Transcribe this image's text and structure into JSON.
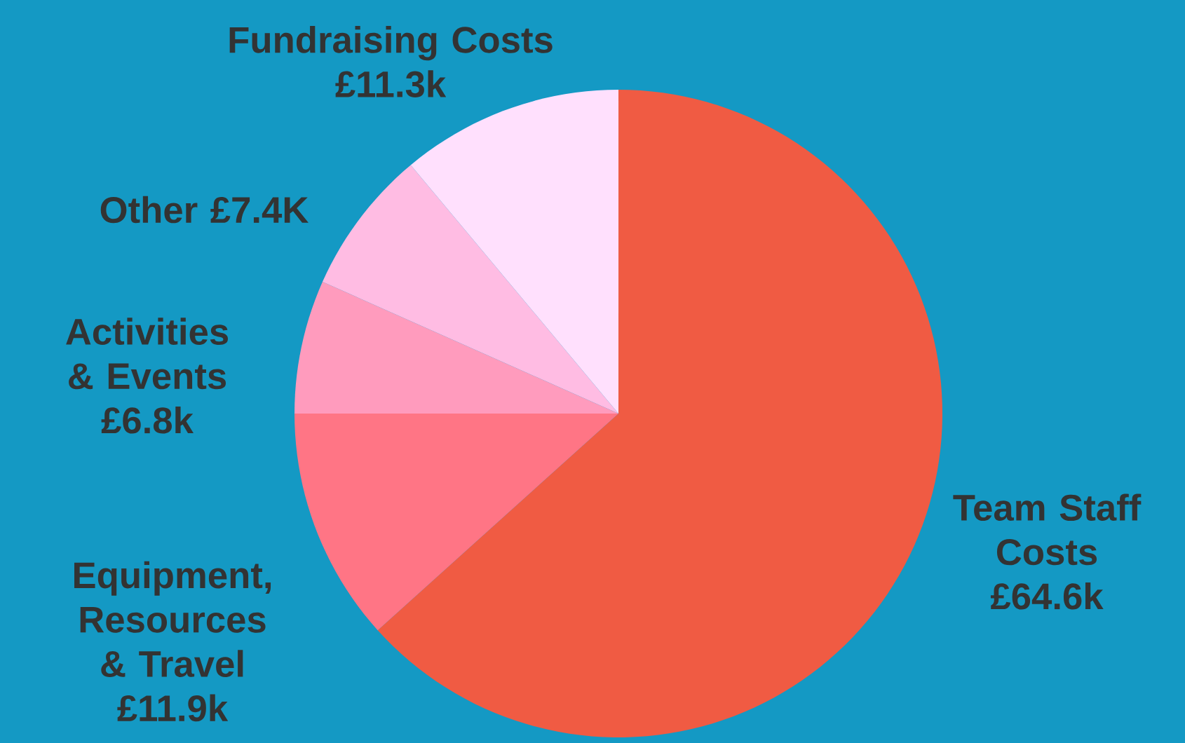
{
  "chart_data": {
    "type": "pie",
    "categories": [
      "Team Staff Costs",
      "Equipment, Resources & Travel",
      "Activities & Events",
      "Other",
      "Fundraising Costs"
    ],
    "values": [
      64.6,
      11.9,
      6.8,
      7.4,
      11.3
    ],
    "value_labels": [
      "£64.6k",
      "£11.9k",
      "£6.8k",
      "£7.4K",
      "£11.3k"
    ],
    "colors": [
      "#f05b43",
      "#ff7585",
      "#ff9bbd",
      "#ffbce3",
      "#ffe0fd"
    ]
  }
}
